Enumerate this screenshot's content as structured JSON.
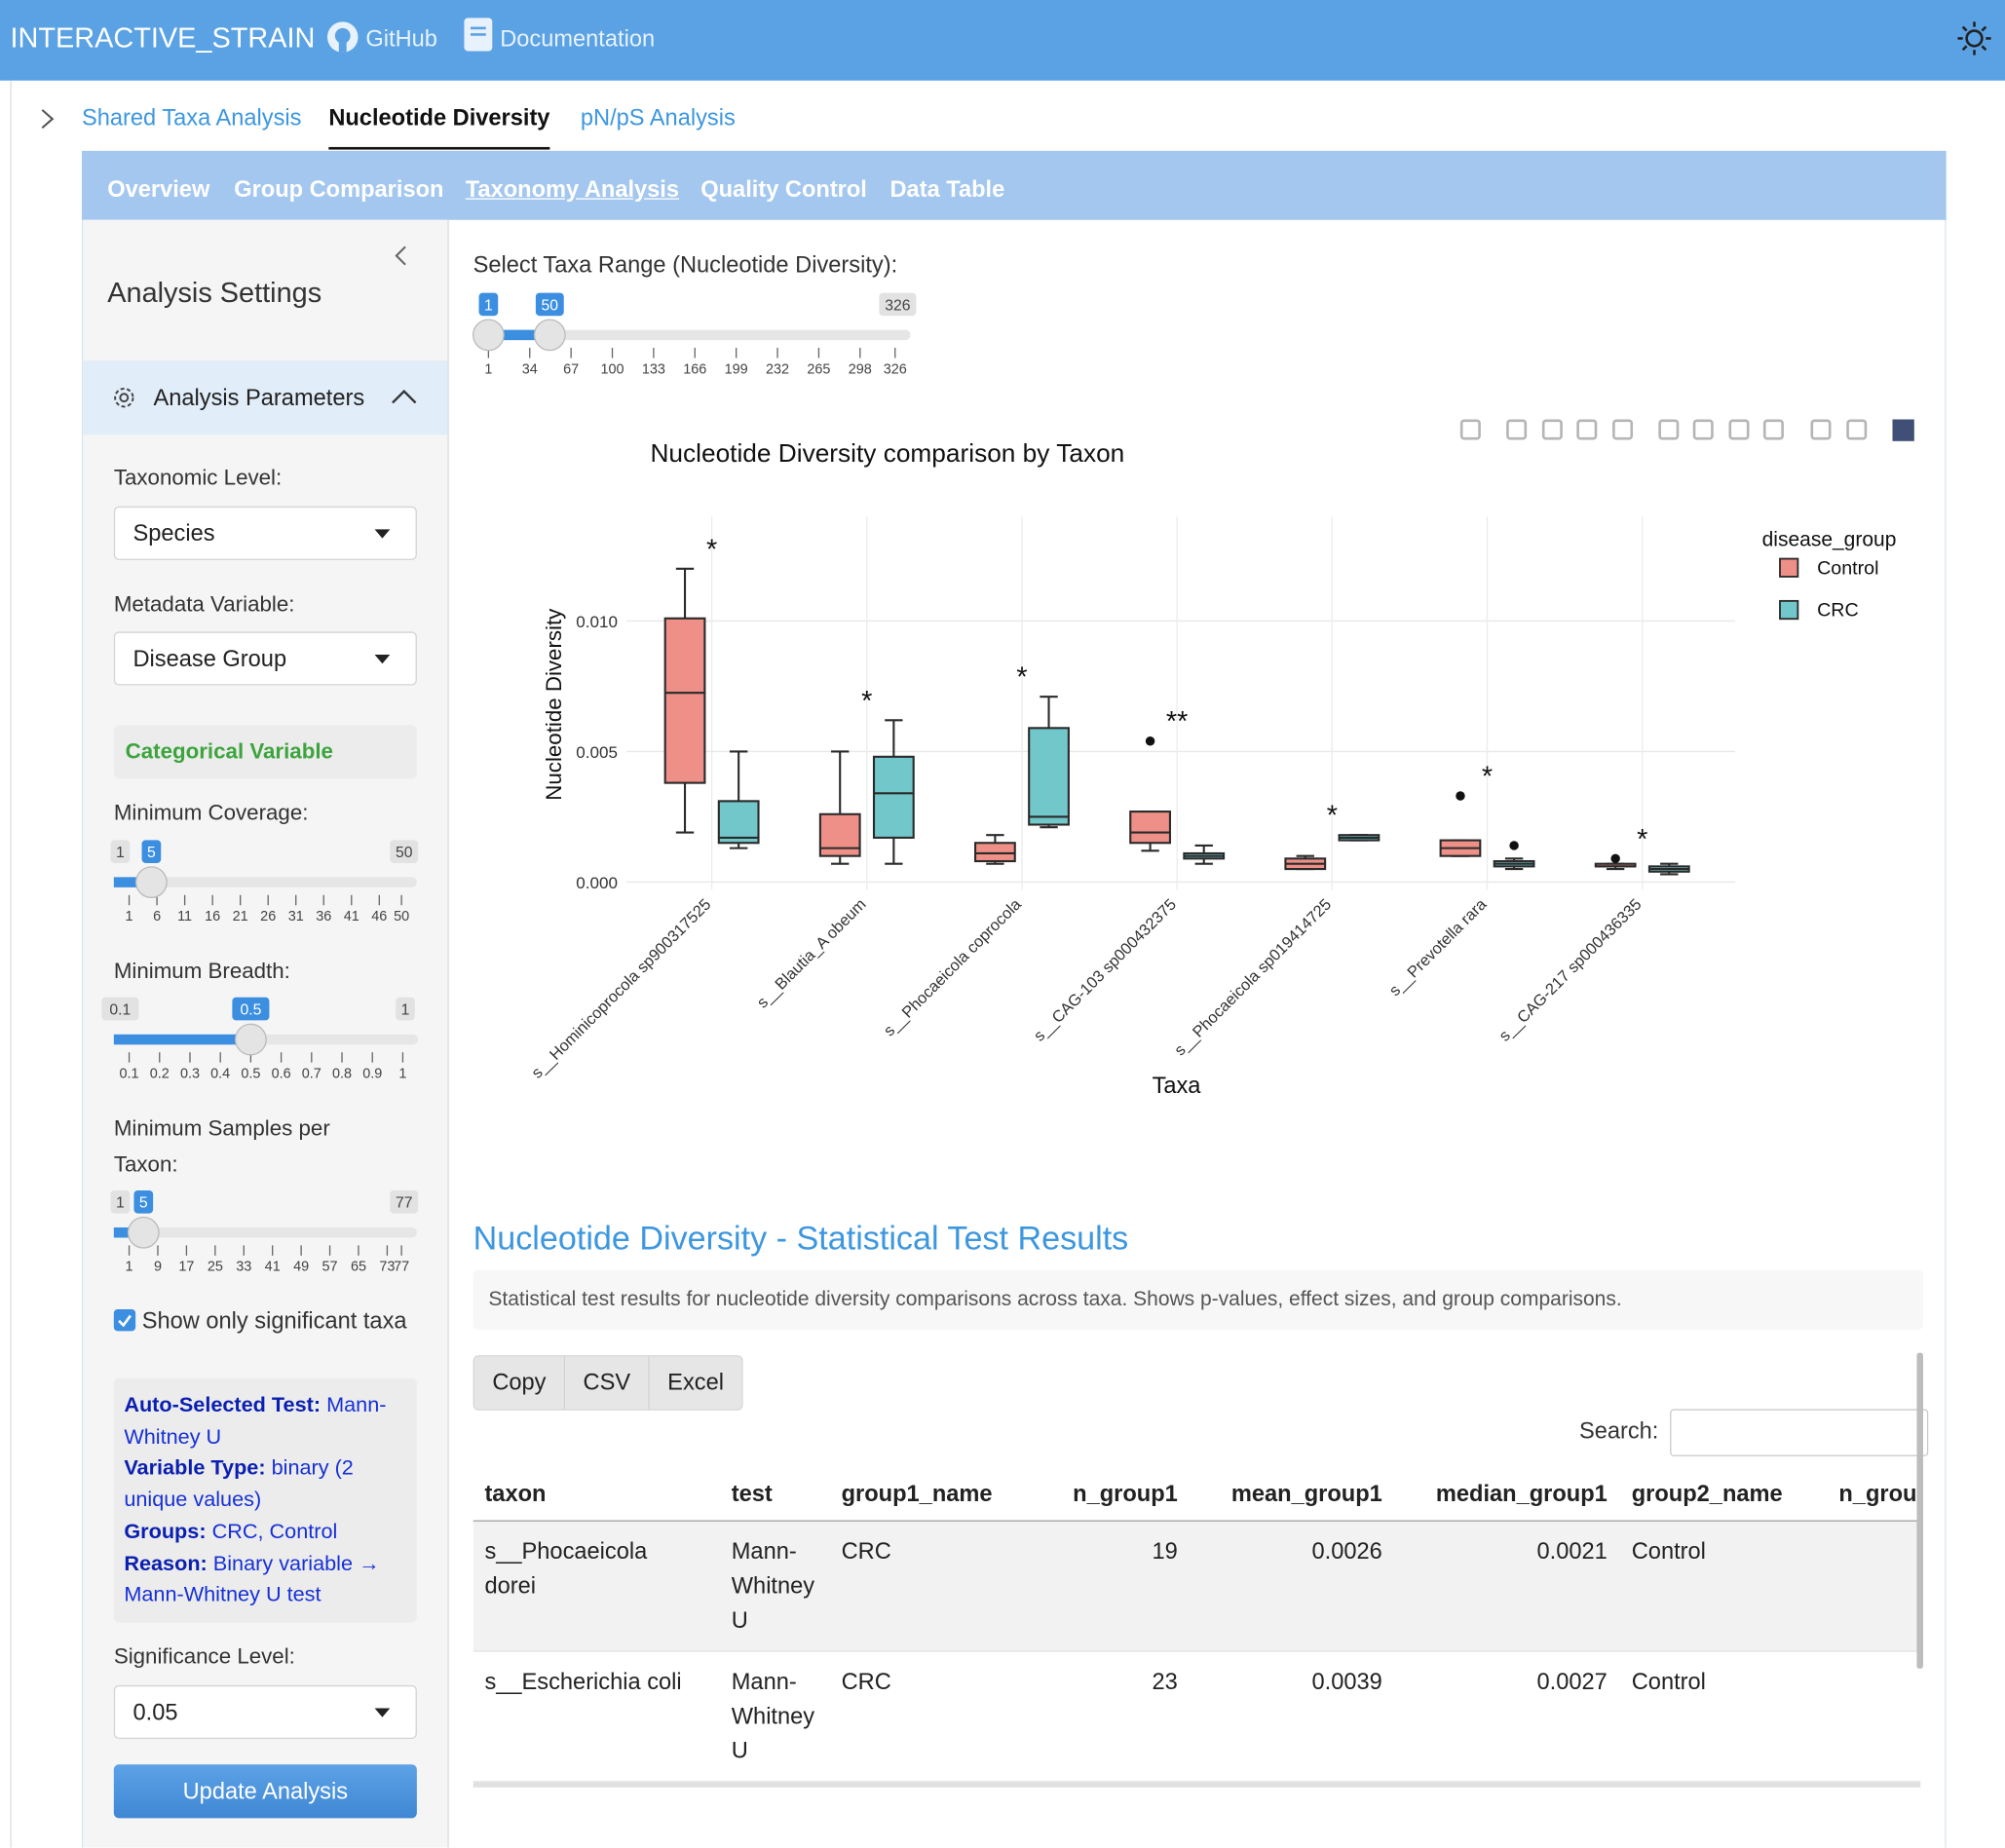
{
  "header": {
    "brand": "INTERACTIVE_STRAIN",
    "links": [
      "GitHub",
      "Documentation"
    ]
  },
  "tabs": [
    "Shared Taxa Analysis",
    "Nucleotide Diversity",
    "pN/pS Analysis"
  ],
  "subtabs": [
    "Overview",
    "Group Comparison",
    "Taxonomy Analysis",
    "Quality Control",
    "Data Table"
  ],
  "sidebar": {
    "title": "Analysis Settings",
    "section": "Analysis Parameters",
    "taxonomic_level": {
      "label": "Taxonomic Level:",
      "value": "Species"
    },
    "metadata_variable": {
      "label": "Metadata Variable:",
      "value": "Disease Group"
    },
    "variable_kind": "Categorical Variable",
    "min_coverage": {
      "label": "Minimum Coverage:",
      "min": 1,
      "max": 50,
      "value": 5,
      "ticks": [
        1,
        6,
        11,
        16,
        21,
        26,
        31,
        36,
        41,
        46,
        50
      ]
    },
    "min_breadth": {
      "label": "Minimum Breadth:",
      "min": 0.1,
      "max": 1,
      "value": 0.5,
      "ticks": [
        0.1,
        0.2,
        0.3,
        0.4,
        0.5,
        0.6,
        0.7,
        0.8,
        0.9,
        1
      ]
    },
    "min_samples": {
      "label": "Minimum Samples per Taxon:",
      "min": 1,
      "max": 77,
      "value": 5,
      "ticks": [
        1,
        9,
        17,
        25,
        33,
        41,
        49,
        57,
        65,
        73,
        77
      ]
    },
    "significant_only": {
      "label": "Show only significant taxa",
      "checked": true
    },
    "test_info": [
      {
        "label": "Auto-Selected Test:",
        "value": "Mann-Whitney U"
      },
      {
        "label": "Variable Type:",
        "value": "binary (2 unique values)"
      },
      {
        "label": "Groups:",
        "value": "CRC, Control"
      },
      {
        "label": "Reason:",
        "value": "Binary variable → Mann-Whitney U test"
      }
    ],
    "significance_level": {
      "label": "Significance Level:",
      "value": "0.05"
    },
    "button": "Update Analysis"
  },
  "taxa_range": {
    "label": "Select Taxa Range (Nucleotide Diversity):",
    "min": 1,
    "max": 326,
    "values": [
      1,
      50
    ],
    "ticks": [
      1,
      34,
      67,
      100,
      133,
      166,
      199,
      232,
      265,
      298,
      326
    ]
  },
  "chart_data": {
    "type": "box",
    "title": "Nucleotide Diversity comparison by Taxon",
    "x_label": "Taxa",
    "y_label": "Nucleotide Diversity",
    "legend_title": "disease_group",
    "categories": [
      "s__Hominicoprocola sp900317525",
      "s__Blautia_A obeum",
      "s__Phocaeicola coprocola",
      "s__CAG-103 sp000432375",
      "s__Phocaeicola sp019414725",
      "s__Prevotella rara",
      "s__CAG-217 sp000436335"
    ],
    "series": [
      {
        "name": "Control",
        "color": "#ee9087",
        "min": [
          0.0019,
          0.0007,
          0.0007,
          0.0012,
          0.0005,
          0.001,
          0.0005
        ],
        "q1": [
          0.0038,
          0.001,
          0.0008,
          0.0015,
          0.0005,
          0.001,
          0.0006
        ],
        "median": [
          0.00725,
          0.0013,
          0.0011,
          0.0019,
          0.0007,
          0.0013,
          0.0006
        ],
        "q3": [
          0.0101,
          0.0026,
          0.0015,
          0.0027,
          0.0009,
          0.0016,
          0.0007
        ],
        "max": [
          0.012,
          0.005,
          0.0018,
          0.0027,
          0.001,
          0.0016,
          0.0007
        ],
        "outliers": [
          [],
          [],
          [],
          [
            0.0054
          ],
          [],
          [
            0.0033
          ],
          [
            0.0009
          ]
        ]
      },
      {
        "name": "CRC",
        "color": "#72c7ca",
        "min": [
          0.0013,
          0.0007,
          0.0021,
          0.0007,
          0.0016,
          0.0005,
          0.0003
        ],
        "q1": [
          0.0015,
          0.0017,
          0.0022,
          0.0009,
          0.0016,
          0.0006,
          0.0004
        ],
        "median": [
          0.0017,
          0.0034,
          0.0025,
          0.001,
          0.0017,
          0.0007,
          0.0005
        ],
        "q3": [
          0.0031,
          0.0048,
          0.0059,
          0.0011,
          0.0018,
          0.0008,
          0.0006
        ],
        "max": [
          0.005,
          0.0062,
          0.0071,
          0.0014,
          0.0018,
          0.0009,
          0.0007
        ],
        "outliers": [
          [],
          [],
          [],
          [],
          [],
          [
            0.0014
          ],
          []
        ]
      }
    ],
    "annotations": [
      "*",
      "*",
      "*",
      "**",
      "*",
      "*",
      "*"
    ],
    "ylim": [
      -0.0003,
      0.014
    ],
    "yticks": [
      {
        "value": 0,
        "label": "0.000"
      },
      {
        "value": 0.005,
        "label": "0.005"
      },
      {
        "value": 0.01,
        "label": "0.010"
      }
    ],
    "grid": true
  },
  "stats": {
    "title": "Nucleotide Diversity - Statistical Test Results",
    "description": "Statistical test results for nucleotide diversity comparisons across taxa. Shows p-values, effect sizes, and group comparisons.",
    "buttons": [
      "Copy",
      "CSV",
      "Excel"
    ],
    "search_label": "Search:"
  },
  "table": {
    "columns": [
      "taxon",
      "test",
      "group1_name",
      "n_group1",
      "mean_group1",
      "median_group1",
      "group2_name",
      "n_grou"
    ],
    "rows": [
      [
        "s__Phocaeicola dorei",
        "Mann-Whitney U",
        "CRC",
        19,
        0.0026,
        0.0021,
        "Control"
      ],
      [
        "s__Escherichia coli",
        "Mann-Whitney U",
        "CRC",
        23,
        0.0039,
        0.0027,
        "Control"
      ]
    ]
  }
}
